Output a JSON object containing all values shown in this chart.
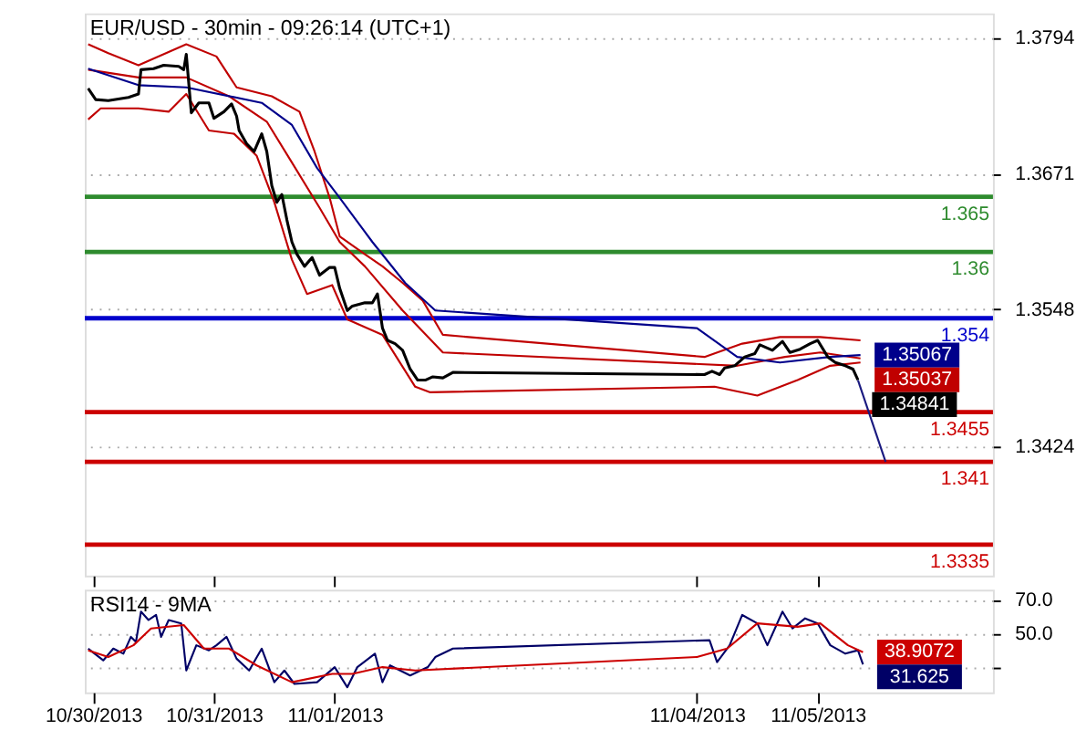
{
  "chart_data": [
    {
      "type": "line",
      "title": "EUR/USD - 30min - 09:26:14 (UTC+1)",
      "xlim": [
        "2013-10-29T22:20",
        "2013-11-06T10:50"
      ],
      "xticks": [
        {
          "value": "2013-10-30",
          "label": null
        },
        {
          "value": "2013-10-31",
          "label": null
        },
        {
          "value": "2013-11-01",
          "label": null
        },
        {
          "value": "2013-11-04",
          "label": null
        },
        {
          "value": "2013-11-05",
          "label": null
        }
      ],
      "ylim": [
        1.3307,
        1.3816
      ],
      "yticks": [
        1.3794,
        1.3671,
        1.3548,
        1.3424
      ],
      "grid": "y",
      "tick_labels": "y",
      "series": [
        {
          "color": "#c00000",
          "x": [
            "2013-10-29T23:00",
            "2013-10-30T03:00",
            "2013-10-30T09:00",
            "2013-10-30T18:30",
            "2013-10-31T00:30",
            "2013-10-31T04:30",
            "2013-10-31T11:30",
            "2013-10-31T17:00",
            "2013-10-31T20:00",
            "2013-10-31T23:00",
            "2013-11-01T01:00",
            "2013-11-01T06:00",
            "2013-11-01T09:30",
            "2013-11-01T13:30",
            "2013-11-01T17:30",
            "2013-11-01T21:30",
            "2013-11-04T01:30",
            "2013-11-04T09:00",
            "2013-11-04T16:30",
            "2013-11-05T00:30",
            "2013-11-05T08:30"
          ],
          "values": [
            1.3788,
            1.378,
            1.3769,
            1.3788,
            1.3777,
            1.3749,
            1.3741,
            1.3727,
            1.3691,
            1.3649,
            1.3614,
            1.3598,
            1.3587,
            1.3572,
            1.3556,
            1.3525,
            1.3505,
            1.3517,
            1.3523,
            1.3523,
            1.352
          ]
        },
        {
          "color": "#c00000",
          "x": [
            "2013-10-29T23:00",
            "2013-10-30T01:30",
            "2013-10-30T09:00",
            "2013-10-30T15:00",
            "2013-10-30T18:30",
            "2013-10-30T23:00",
            "2013-10-31T04:00",
            "2013-10-31T08:30",
            "2013-10-31T12:00",
            "2013-10-31T15:30",
            "2013-10-31T18:30",
            "2013-10-31T23:30",
            "2013-11-01T02:30",
            "2013-11-01T09:30",
            "2013-11-01T16:00",
            "2013-11-01T19:00",
            "2013-11-04T03:30",
            "2013-11-04T12:00",
            "2013-11-04T20:00",
            "2013-11-05T02:30",
            "2013-11-05T08:30"
          ],
          "values": [
            1.372,
            1.373,
            1.373,
            1.3727,
            1.3743,
            1.371,
            1.3707,
            1.3687,
            1.3645,
            1.3593,
            1.3562,
            1.357,
            1.3539,
            1.3525,
            1.3478,
            1.3473,
            1.3478,
            1.347,
            1.3484,
            1.3497,
            1.35
          ]
        },
        {
          "color": "#c00000",
          "x": [
            "2013-10-29T23:00",
            "2013-10-30T09:00",
            "2013-10-30T18:30",
            "2013-10-31T03:00",
            "2013-10-31T10:30",
            "2013-10-31T15:30",
            "2013-10-31T21:00",
            "2013-11-01T01:00",
            "2013-11-01T06:00",
            "2013-11-01T13:30",
            "2013-11-01T21:30",
            "2013-11-04T08:00",
            "2013-11-04T17:30",
            "2013-11-05T00:30",
            "2013-11-05T08:30"
          ],
          "values": [
            1.3765,
            1.3758,
            1.3758,
            1.3741,
            1.3718,
            1.3681,
            1.364,
            1.3609,
            1.3587,
            1.3547,
            1.3509,
            1.3497,
            1.3505,
            1.3509,
            1.35037
          ],
          "value_labels": [
            null,
            null,
            null,
            null,
            null,
            null,
            null,
            null,
            null,
            null,
            null,
            null,
            null,
            null,
            "1.35037"
          ]
        },
        {
          "color": "#00008b",
          "x": [
            "2013-10-29T23:00",
            "2013-10-30T09:00",
            "2013-10-30T18:30",
            "2013-10-31T09:30",
            "2013-10-31T15:30",
            "2013-10-31T20:30",
            "2013-11-01T01:00",
            "2013-11-01T07:30",
            "2013-11-01T14:00",
            "2013-11-01T20:00",
            "2013-11-04T00:00",
            "2013-11-04T08:00",
            "2013-11-04T16:30",
            "2013-11-05T02:30",
            "2013-11-05T08:30"
          ],
          "values": [
            1.3766,
            1.3751,
            1.3749,
            1.3735,
            1.3715,
            1.3676,
            1.3649,
            1.3609,
            1.3572,
            1.3547,
            1.3531,
            1.3505,
            1.35,
            1.3505,
            1.35067
          ],
          "value_labels": [
            null,
            null,
            null,
            null,
            null,
            null,
            null,
            null,
            null,
            null,
            null,
            null,
            null,
            null,
            "1.35067"
          ]
        },
        {
          "color": "#000000",
          "x": [
            "2013-10-29T23:00",
            "2013-10-30T00:30",
            "2013-10-30T03:00",
            "2013-10-30T07:00",
            "2013-10-30T09:00",
            "2013-10-30T09:30",
            "2013-10-30T12:00",
            "2013-10-30T14:00",
            "2013-10-30T17:00",
            "2013-10-30T18:00",
            "2013-10-30T18:30",
            "2013-10-30T19:30",
            "2013-10-30T21:00",
            "2013-10-30T23:00",
            "2013-10-31T00:00",
            "2013-10-31T02:00",
            "2013-10-31T03:30",
            "2013-10-31T04:30",
            "2013-10-31T05:00",
            "2013-10-31T06:30",
            "2013-10-31T08:00",
            "2013-10-31T09:30",
            "2013-10-31T10:30",
            "2013-10-31T11:30",
            "2013-10-31T12:30",
            "2013-10-31T13:30",
            "2013-10-31T14:30",
            "2013-10-31T15:30",
            "2013-10-31T16:30",
            "2013-10-31T18:00",
            "2013-10-31T19:30",
            "2013-10-31T21:00",
            "2013-10-31T23:00",
            "2013-11-01T00:00",
            "2013-11-01T01:00",
            "2013-11-01T02:30",
            "2013-11-01T03:30",
            "2013-11-01T06:00",
            "2013-11-01T07:30",
            "2013-11-01T08:30",
            "2013-11-01T09:30",
            "2013-11-01T10:30",
            "2013-11-01T12:00",
            "2013-11-01T13:30",
            "2013-11-01T15:00",
            "2013-11-01T16:30",
            "2013-11-01T18:00",
            "2013-11-01T19:30",
            "2013-11-01T21:30",
            "2013-11-01T23:30",
            "2013-11-04T01:30",
            "2013-11-04T03:00",
            "2013-11-04T04:30",
            "2013-11-04T05:30",
            "2013-11-04T07:30",
            "2013-11-04T09:30",
            "2013-11-04T11:30",
            "2013-11-04T12:30",
            "2013-11-04T15:00",
            "2013-11-04T17:00",
            "2013-11-04T18:30",
            "2013-11-04T20:30",
            "2013-11-04T22:30",
            "2013-11-05T00:00",
            "2013-11-05T02:00",
            "2013-11-05T03:30",
            "2013-11-05T05:30",
            "2013-11-05T07:00",
            "2013-11-05T08:00"
          ],
          "values": [
            1.3748,
            1.3738,
            1.3737,
            1.374,
            1.3743,
            1.3765,
            1.3766,
            1.3769,
            1.3768,
            1.3765,
            1.3779,
            1.3726,
            1.3735,
            1.3735,
            1.3721,
            1.3727,
            1.3734,
            1.3723,
            1.371,
            1.3698,
            1.3691,
            1.3707,
            1.3691,
            1.366,
            1.3645,
            1.3652,
            1.3629,
            1.3609,
            1.3598,
            1.3587,
            1.3595,
            1.3579,
            1.3586,
            1.3586,
            1.3567,
            1.3547,
            1.3551,
            1.3554,
            1.3554,
            1.3562,
            1.3531,
            1.352,
            1.3517,
            1.3511,
            1.3494,
            1.3484,
            1.3484,
            1.3487,
            1.3486,
            1.3491,
            1.3489,
            1.3492,
            1.3489,
            1.3495,
            1.3497,
            1.3505,
            1.3508,
            1.3516,
            1.3511,
            1.3519,
            1.3509,
            1.3512,
            1.3517,
            1.352,
            1.3505,
            1.35,
            1.3497,
            1.3494,
            1.34841
          ],
          "value_labels": [
            null,
            null,
            null,
            null,
            null,
            null,
            null,
            null,
            null,
            null,
            null,
            null,
            null,
            null,
            null,
            null,
            null,
            null,
            null,
            null,
            null,
            null,
            null,
            null,
            null,
            null,
            null,
            null,
            null,
            null,
            null,
            null,
            null,
            null,
            null,
            null,
            null,
            null,
            null,
            null,
            null,
            null,
            null,
            null,
            null,
            null,
            null,
            null,
            null,
            null,
            null,
            null,
            null,
            null,
            null,
            null,
            null,
            null,
            null,
            null,
            null,
            null,
            null,
            null,
            null,
            null,
            null,
            null,
            "1.34841"
          ]
        },
        {
          "color": "#1a1a80",
          "x": [
            "2013-11-05T08:00",
            "2013-11-05T13:30"
          ],
          "values": [
            1.3484,
            1.341
          ]
        }
      ],
      "ref_lines": [
        {
          "axis": "y",
          "value": 1.365,
          "label": "1.365",
          "color": "#2e8b2e"
        },
        {
          "axis": "y",
          "value": 1.36,
          "label": "1.36",
          "color": "#2e8b2e"
        },
        {
          "axis": "y",
          "value": 1.354,
          "label": "1.354",
          "color": "#0000cc"
        },
        {
          "axis": "y",
          "value": 1.3455,
          "label": "1.3455",
          "color": "#cc0000"
        },
        {
          "axis": "y",
          "value": 1.341,
          "label": "1.341",
          "color": "#cc0000"
        },
        {
          "axis": "y",
          "value": 1.3335,
          "label": "1.3335",
          "color": "#cc0000"
        }
      ]
    },
    {
      "type": "line",
      "title": "RSI14 - 9MA",
      "xlim": [
        "2013-10-29T22:20",
        "2013-11-06T10:50"
      ],
      "xticks": [
        {
          "value": "2013-10-30",
          "label": "10/30/2013"
        },
        {
          "value": "2013-10-31",
          "label": "10/31/2013"
        },
        {
          "value": "2013-11-01",
          "label": "11/01/2013"
        },
        {
          "value": "2013-11-04",
          "label": "11/04/2013"
        },
        {
          "value": "2013-11-05",
          "label": "11/05/2013"
        }
      ],
      "ylim": [
        15,
        76
      ],
      "yticks": [
        {
          "value": 70,
          "label": "70.0"
        },
        {
          "value": 50,
          "label": "50.0"
        },
        {
          "value": 30,
          "label": null
        }
      ],
      "grid": "y",
      "series": [
        {
          "color": "#000066",
          "x": [
            "2013-10-29T23:00",
            "2013-10-30T02:00",
            "2013-10-30T04:00",
            "2013-10-30T06:00",
            "2013-10-30T07:30",
            "2013-10-30T08:30",
            "2013-10-30T09:30",
            "2013-10-30T11:00",
            "2013-10-30T12:30",
            "2013-10-30T13:30",
            "2013-10-30T15:00",
            "2013-10-30T17:30",
            "2013-10-30T18:30",
            "2013-10-30T20:30",
            "2013-10-30T23:00",
            "2013-10-31T00:30",
            "2013-10-31T02:30",
            "2013-10-31T04:30",
            "2013-10-31T07:00",
            "2013-10-31T09:30",
            "2013-10-31T12:00",
            "2013-10-31T14:00",
            "2013-10-31T16:00",
            "2013-10-31T20:30",
            "2013-11-01T00:00",
            "2013-11-01T02:30",
            "2013-11-01T04:30",
            "2013-11-01T08:00",
            "2013-11-01T09:30",
            "2013-11-01T11:00",
            "2013-11-01T15:00",
            "2013-11-01T18:30",
            "2013-11-01T20:00",
            "2013-11-01T23:30",
            "2013-11-04T02:30",
            "2013-11-04T04:00",
            "2013-11-04T06:30",
            "2013-11-04T09:00",
            "2013-11-04T12:00",
            "2013-11-04T14:00",
            "2013-11-04T17:00",
            "2013-11-04T19:00",
            "2013-11-04T21:30",
            "2013-11-05T00:00",
            "2013-11-05T02:30",
            "2013-11-05T05:30",
            "2013-11-05T08:00",
            "2013-11-05T09:00"
          ],
          "values": [
            41,
            34,
            41,
            38,
            48,
            45,
            63,
            58,
            61,
            48,
            58,
            56,
            28,
            43,
            40,
            43,
            48,
            35,
            28,
            41,
            21,
            28,
            20,
            21,
            30,
            18,
            30,
            38,
            21,
            31,
            25,
            30,
            36,
            41,
            46,
            33,
            43,
            61,
            56,
            43,
            63,
            53,
            59,
            56,
            43,
            38,
            40,
            31.625
          ],
          "value_labels": [
            null,
            null,
            null,
            null,
            null,
            null,
            null,
            null,
            null,
            null,
            null,
            null,
            null,
            null,
            null,
            null,
            null,
            null,
            null,
            null,
            null,
            null,
            null,
            null,
            null,
            null,
            null,
            null,
            null,
            null,
            null,
            null,
            null,
            null,
            null,
            null,
            null,
            null,
            null,
            null,
            null,
            null,
            null,
            null,
            null,
            null,
            null,
            "31.625"
          ]
        },
        {
          "color": "#cc0000",
          "x": [
            "2013-10-29T23:00",
            "2013-10-30T03:00",
            "2013-10-30T08:00",
            "2013-10-30T11:30",
            "2013-10-30T18:00",
            "2013-10-30T22:00",
            "2013-10-31T03:00",
            "2013-10-31T08:30",
            "2013-10-31T15:30",
            "2013-10-31T23:30",
            "2013-11-01T03:30",
            "2013-11-01T09:30",
            "2013-11-01T16:00",
            "2013-11-04T00:00",
            "2013-11-04T06:00",
            "2013-11-04T12:00",
            "2013-11-04T20:00",
            "2013-11-05T00:30",
            "2013-11-05T06:00",
            "2013-11-05T09:00"
          ],
          "values": [
            40,
            36,
            43,
            53,
            55,
            41,
            41,
            31,
            21,
            26,
            26,
            30,
            28,
            36,
            41,
            56,
            54,
            56,
            43,
            38.9072
          ],
          "value_labels": [
            null,
            null,
            null,
            null,
            null,
            null,
            null,
            null,
            null,
            null,
            null,
            null,
            null,
            null,
            null,
            null,
            null,
            null,
            null,
            "38.9072"
          ]
        }
      ]
    }
  ]
}
